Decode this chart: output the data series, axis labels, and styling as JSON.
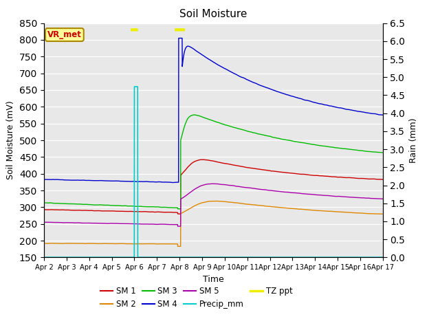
{
  "title": "Soil Moisture",
  "xlabel": "Time",
  "ylabel_left": "Soil Moisture (mV)",
  "ylabel_right": "Rain (mm)",
  "ylim_left": [
    150,
    850
  ],
  "ylim_right": [
    0.0,
    6.5
  ],
  "yticks_left": [
    150,
    200,
    250,
    300,
    350,
    400,
    450,
    500,
    550,
    600,
    650,
    700,
    750,
    800,
    850
  ],
  "yticks_right": [
    0.0,
    0.5,
    1.0,
    1.5,
    2.0,
    2.5,
    3.0,
    3.5,
    4.0,
    4.5,
    5.0,
    5.5,
    6.0,
    6.5
  ],
  "xtick_labels": [
    "Apr 2",
    "Apr 3",
    "Apr 4",
    "Apr 5",
    "Apr 6",
    "Apr 7",
    "Apr 8",
    "Apr 9",
    "Apr 10",
    "Apr 11",
    "Apr 12",
    "Apr 13",
    "Apr 14",
    "Apr 15",
    "Apr 16",
    "Apr 17"
  ],
  "colors": {
    "SM1": "#cc0000",
    "SM2": "#dd8800",
    "SM3": "#00bb00",
    "SM4": "#0000cc",
    "SM5": "#aa00aa",
    "Precip_mm": "#00cccc",
    "TZ_ppt": "#eeee00",
    "background": "#e8e8e8",
    "grid": "#ffffff"
  },
  "annotation_label": "VR_met",
  "annotation_box_facecolor": "#ffff99",
  "annotation_box_edgecolor": "#aa8800",
  "annotation_text_color": "#cc0000"
}
